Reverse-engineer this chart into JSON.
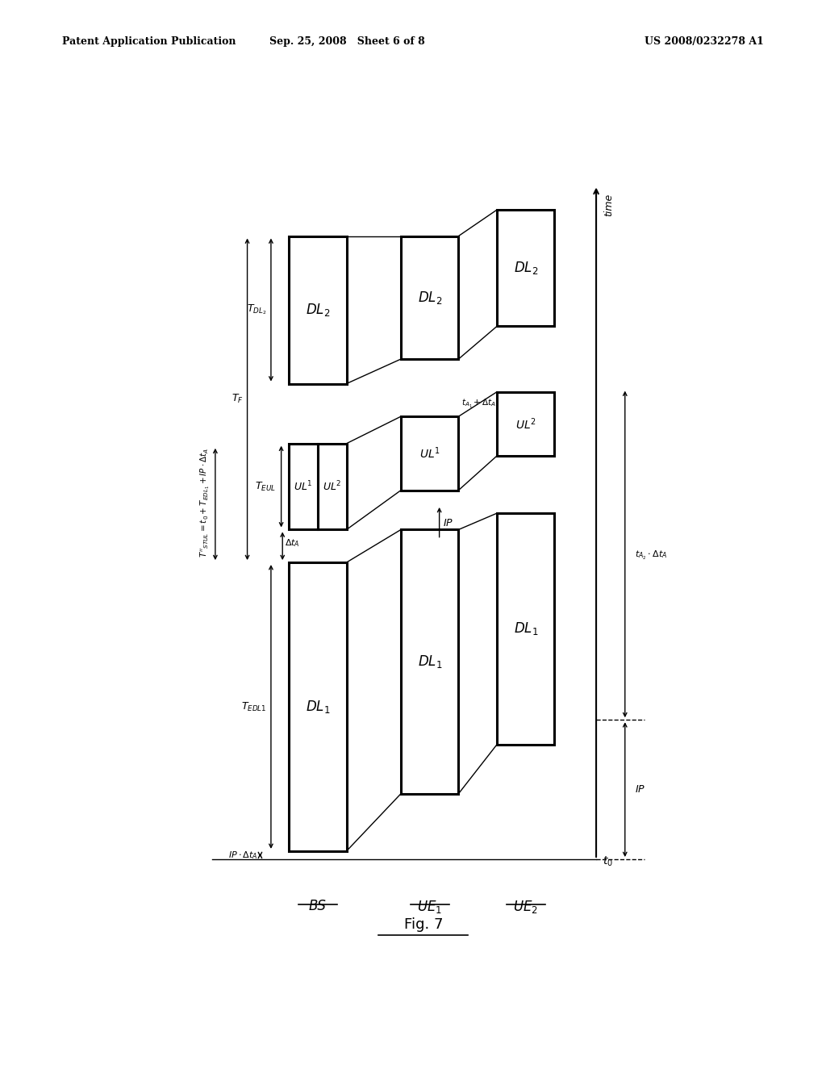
{
  "bg_color": "#ffffff",
  "header_left": "Patent Application Publication",
  "header_center": "Sep. 25, 2008   Sheet 6 of 8",
  "header_right": "US 2008/0232278 A1",
  "fig_label": "Fig. 7"
}
